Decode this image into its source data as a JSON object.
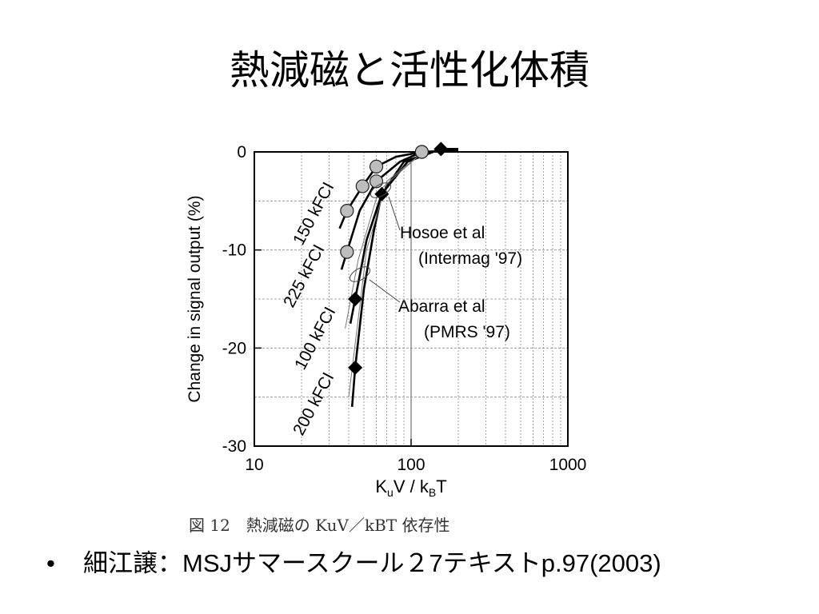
{
  "slide": {
    "title": "熱減磁と活性化体積",
    "bullets": [
      {
        "text": "細江譲：MSJサマースクール２7テキストp.97(2003)"
      }
    ]
  },
  "chart_data": {
    "type": "scatter",
    "x_scale": "log",
    "xlim": [
      10,
      1000
    ],
    "ylim": [
      -30,
      0
    ],
    "xlabel_main": "K",
    "xlabel_main_sub": "u",
    "xlabel_rest": "V / k",
    "xlabel_rest_sub": "B",
    "xlabel_end": "T",
    "ylabel": "Change in signal output (%)",
    "x_ticks": [
      {
        "v": 10,
        "label": "10"
      },
      {
        "v": 100,
        "label": "100"
      },
      {
        "v": 1000,
        "label": "1000"
      }
    ],
    "y_ticks": [
      {
        "v": 0,
        "label": "0"
      },
      {
        "v": -10,
        "label": "-10"
      },
      {
        "v": -20,
        "label": "-20"
      },
      {
        "v": -30,
        "label": "-30"
      }
    ],
    "grid": true,
    "series": [
      {
        "name": "150 kFCI",
        "marker": "circle",
        "points": [
          {
            "x": 39,
            "y": -6
          },
          {
            "x": 49,
            "y": -3.5
          },
          {
            "x": 60,
            "y": -1.5
          },
          {
            "x": 117,
            "y": 0
          }
        ],
        "curve": [
          [
            35,
            -7.8
          ],
          [
            39,
            -6
          ],
          [
            49,
            -3.5
          ],
          [
            60,
            -1.5
          ],
          [
            80,
            -0.5
          ],
          [
            117,
            0
          ],
          [
            160,
            0.1
          ],
          [
            200,
            0.1
          ]
        ]
      },
      {
        "name": "225 kFCI",
        "marker": "circle",
        "points": [
          {
            "x": 39,
            "y": -10.2
          },
          {
            "x": 60,
            "y": -3
          },
          {
            "x": 117,
            "y": 0
          }
        ],
        "curve": [
          [
            36,
            -12
          ],
          [
            39,
            -10.2
          ],
          [
            47,
            -6
          ],
          [
            60,
            -3
          ],
          [
            85,
            -1
          ],
          [
            117,
            0
          ],
          [
            200,
            0.1
          ]
        ]
      },
      {
        "name": "100 kFCI",
        "marker": "diamond",
        "points": [
          {
            "x": 44,
            "y": -15
          }
        ],
        "curve": [
          [
            41,
            -17.5
          ],
          [
            44,
            -15
          ],
          [
            52,
            -9
          ],
          [
            65,
            -4.3
          ],
          [
            95,
            -1
          ],
          [
            155,
            0.3
          ],
          [
            200,
            0.3
          ]
        ]
      },
      {
        "name": "200 kFCI",
        "marker": "diamond",
        "points": [
          {
            "x": 44,
            "y": -22
          },
          {
            "x": 65,
            "y": -4.3
          },
          {
            "x": 155,
            "y": 0.3
          }
        ],
        "curve": [
          [
            42,
            -26
          ],
          [
            44,
            -22
          ],
          [
            50,
            -14
          ],
          [
            58,
            -8
          ],
          [
            65,
            -4.3
          ],
          [
            90,
            -1
          ],
          [
            155,
            0.3
          ],
          [
            200,
            0.3
          ]
        ]
      }
    ],
    "annotations": [
      {
        "lines": [
          "Hosoe et al",
          "(Intermag '97)"
        ]
      },
      {
        "lines": [
          "Abarra et al",
          "(PMRS '97)"
        ]
      }
    ],
    "caption": "図 12　熱減磁の KuV／kBT 依存性"
  }
}
